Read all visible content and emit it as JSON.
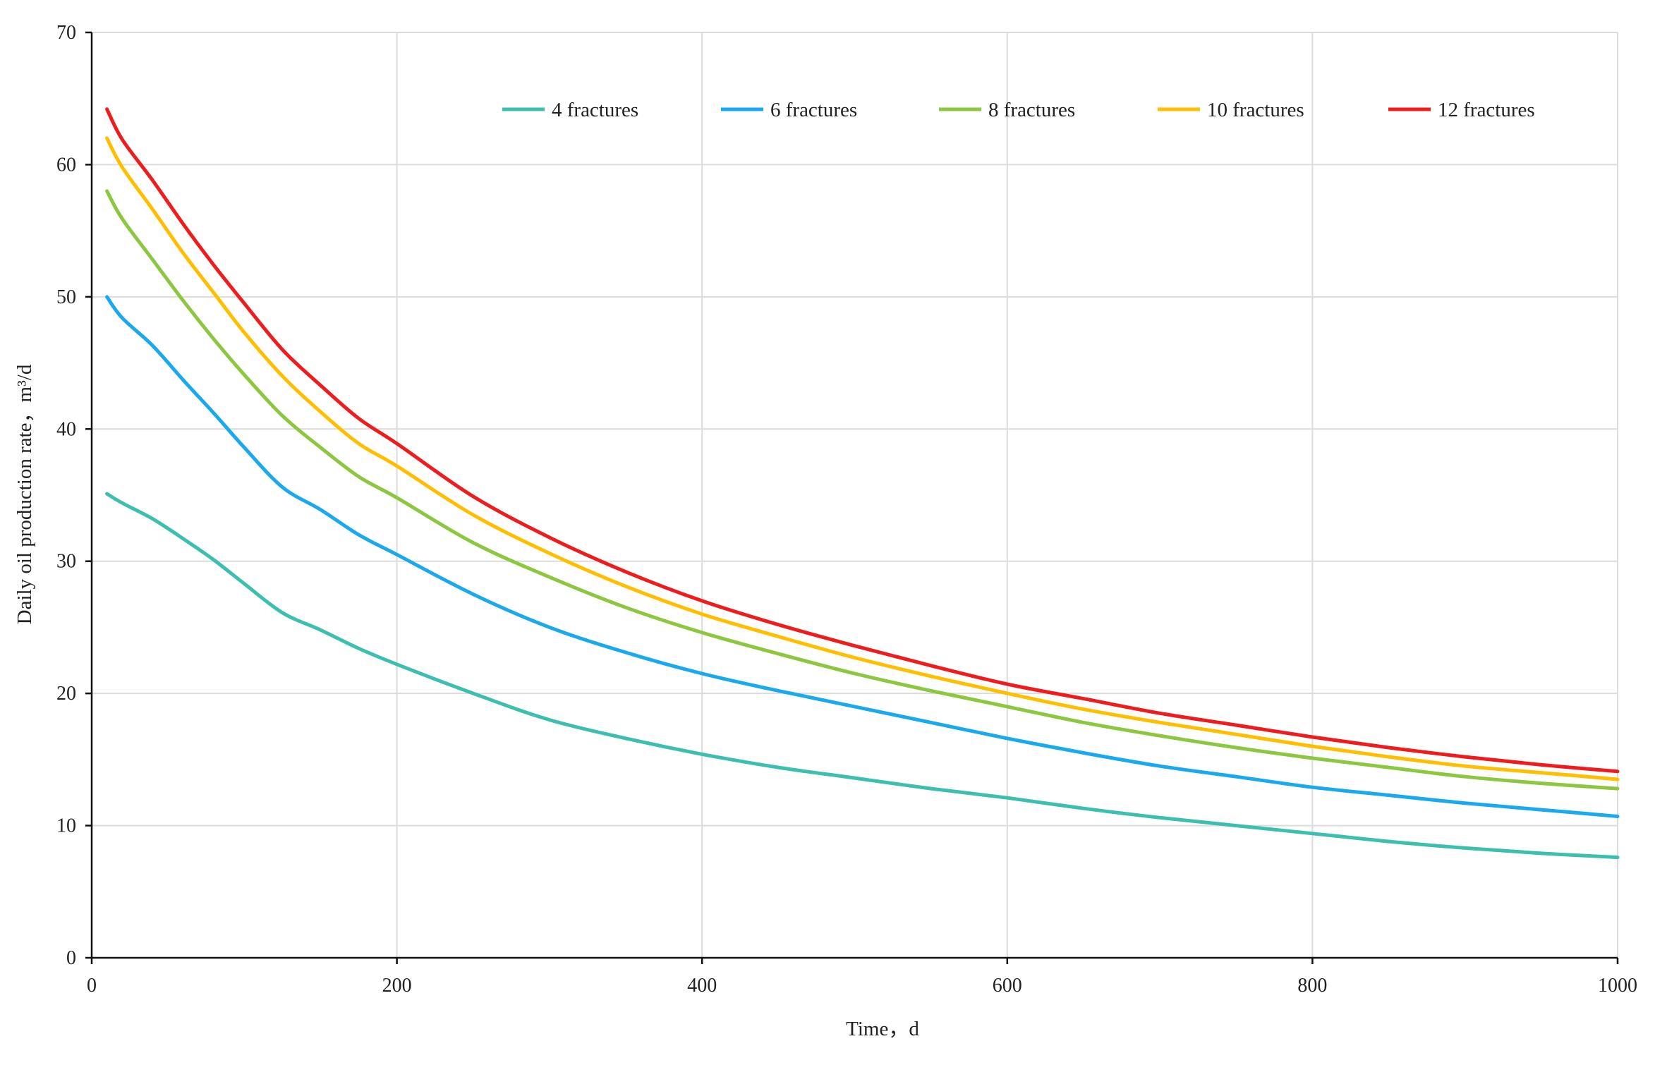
{
  "chart_data": {
    "type": "line",
    "title": "",
    "xlabel": "Time，d",
    "ylabel": "Daily oil production rate，m³/d",
    "xlim": [
      0,
      1000
    ],
    "ylim": [
      0,
      70
    ],
    "xticks": [
      0,
      200,
      400,
      600,
      800,
      1000
    ],
    "yticks": [
      0,
      10,
      20,
      30,
      40,
      50,
      60,
      70
    ],
    "grid": true,
    "legend_position": "top-right",
    "x": [
      10,
      20,
      40,
      60,
      80,
      100,
      125,
      150,
      175,
      200,
      250,
      300,
      350,
      400,
      450,
      500,
      550,
      600,
      650,
      700,
      750,
      800,
      850,
      900,
      950,
      1000
    ],
    "series": [
      {
        "name": "4 fractures",
        "color": "#3cbfae",
        "values": [
          35.1,
          34.4,
          33.2,
          31.7,
          30.1,
          28.3,
          26.1,
          24.8,
          23.4,
          22.2,
          20.0,
          18.0,
          16.6,
          15.4,
          14.4,
          13.6,
          12.8,
          12.1,
          11.3,
          10.6,
          10.0,
          9.4,
          8.8,
          8.3,
          7.9,
          7.6
        ]
      },
      {
        "name": "6 fractures",
        "color": "#19a9ec",
        "values": [
          50.0,
          48.4,
          46.3,
          43.7,
          41.2,
          38.6,
          35.6,
          33.9,
          32.0,
          30.5,
          27.5,
          25.0,
          23.1,
          21.5,
          20.2,
          19.0,
          17.8,
          16.6,
          15.5,
          14.5,
          13.7,
          12.9,
          12.3,
          11.7,
          11.2,
          10.7
        ]
      },
      {
        "name": "8 fractures",
        "color": "#8dc63f",
        "values": [
          58.0,
          55.9,
          52.8,
          49.7,
          46.8,
          44.1,
          41.0,
          38.6,
          36.4,
          34.8,
          31.4,
          28.8,
          26.5,
          24.6,
          23.0,
          21.5,
          20.2,
          19.0,
          17.8,
          16.8,
          15.9,
          15.1,
          14.4,
          13.7,
          13.2,
          12.8
        ]
      },
      {
        "name": "10 fractures",
        "color": "#ffbf00",
        "values": [
          62.0,
          59.8,
          56.6,
          53.3,
          50.3,
          47.3,
          44.0,
          41.3,
          38.9,
          37.2,
          33.5,
          30.6,
          28.1,
          26.0,
          24.3,
          22.7,
          21.3,
          20.0,
          18.8,
          17.8,
          16.9,
          16.0,
          15.2,
          14.5,
          14.0,
          13.5
        ]
      },
      {
        "name": "12 fractures",
        "color": "#ee1c1c",
        "values": [
          64.2,
          61.9,
          58.8,
          55.5,
          52.4,
          49.5,
          46.0,
          43.3,
          40.8,
          38.9,
          34.9,
          31.8,
          29.2,
          27.0,
          25.2,
          23.6,
          22.1,
          20.7,
          19.6,
          18.5,
          17.6,
          16.7,
          15.9,
          15.2,
          14.6,
          14.1
        ]
      }
    ]
  }
}
